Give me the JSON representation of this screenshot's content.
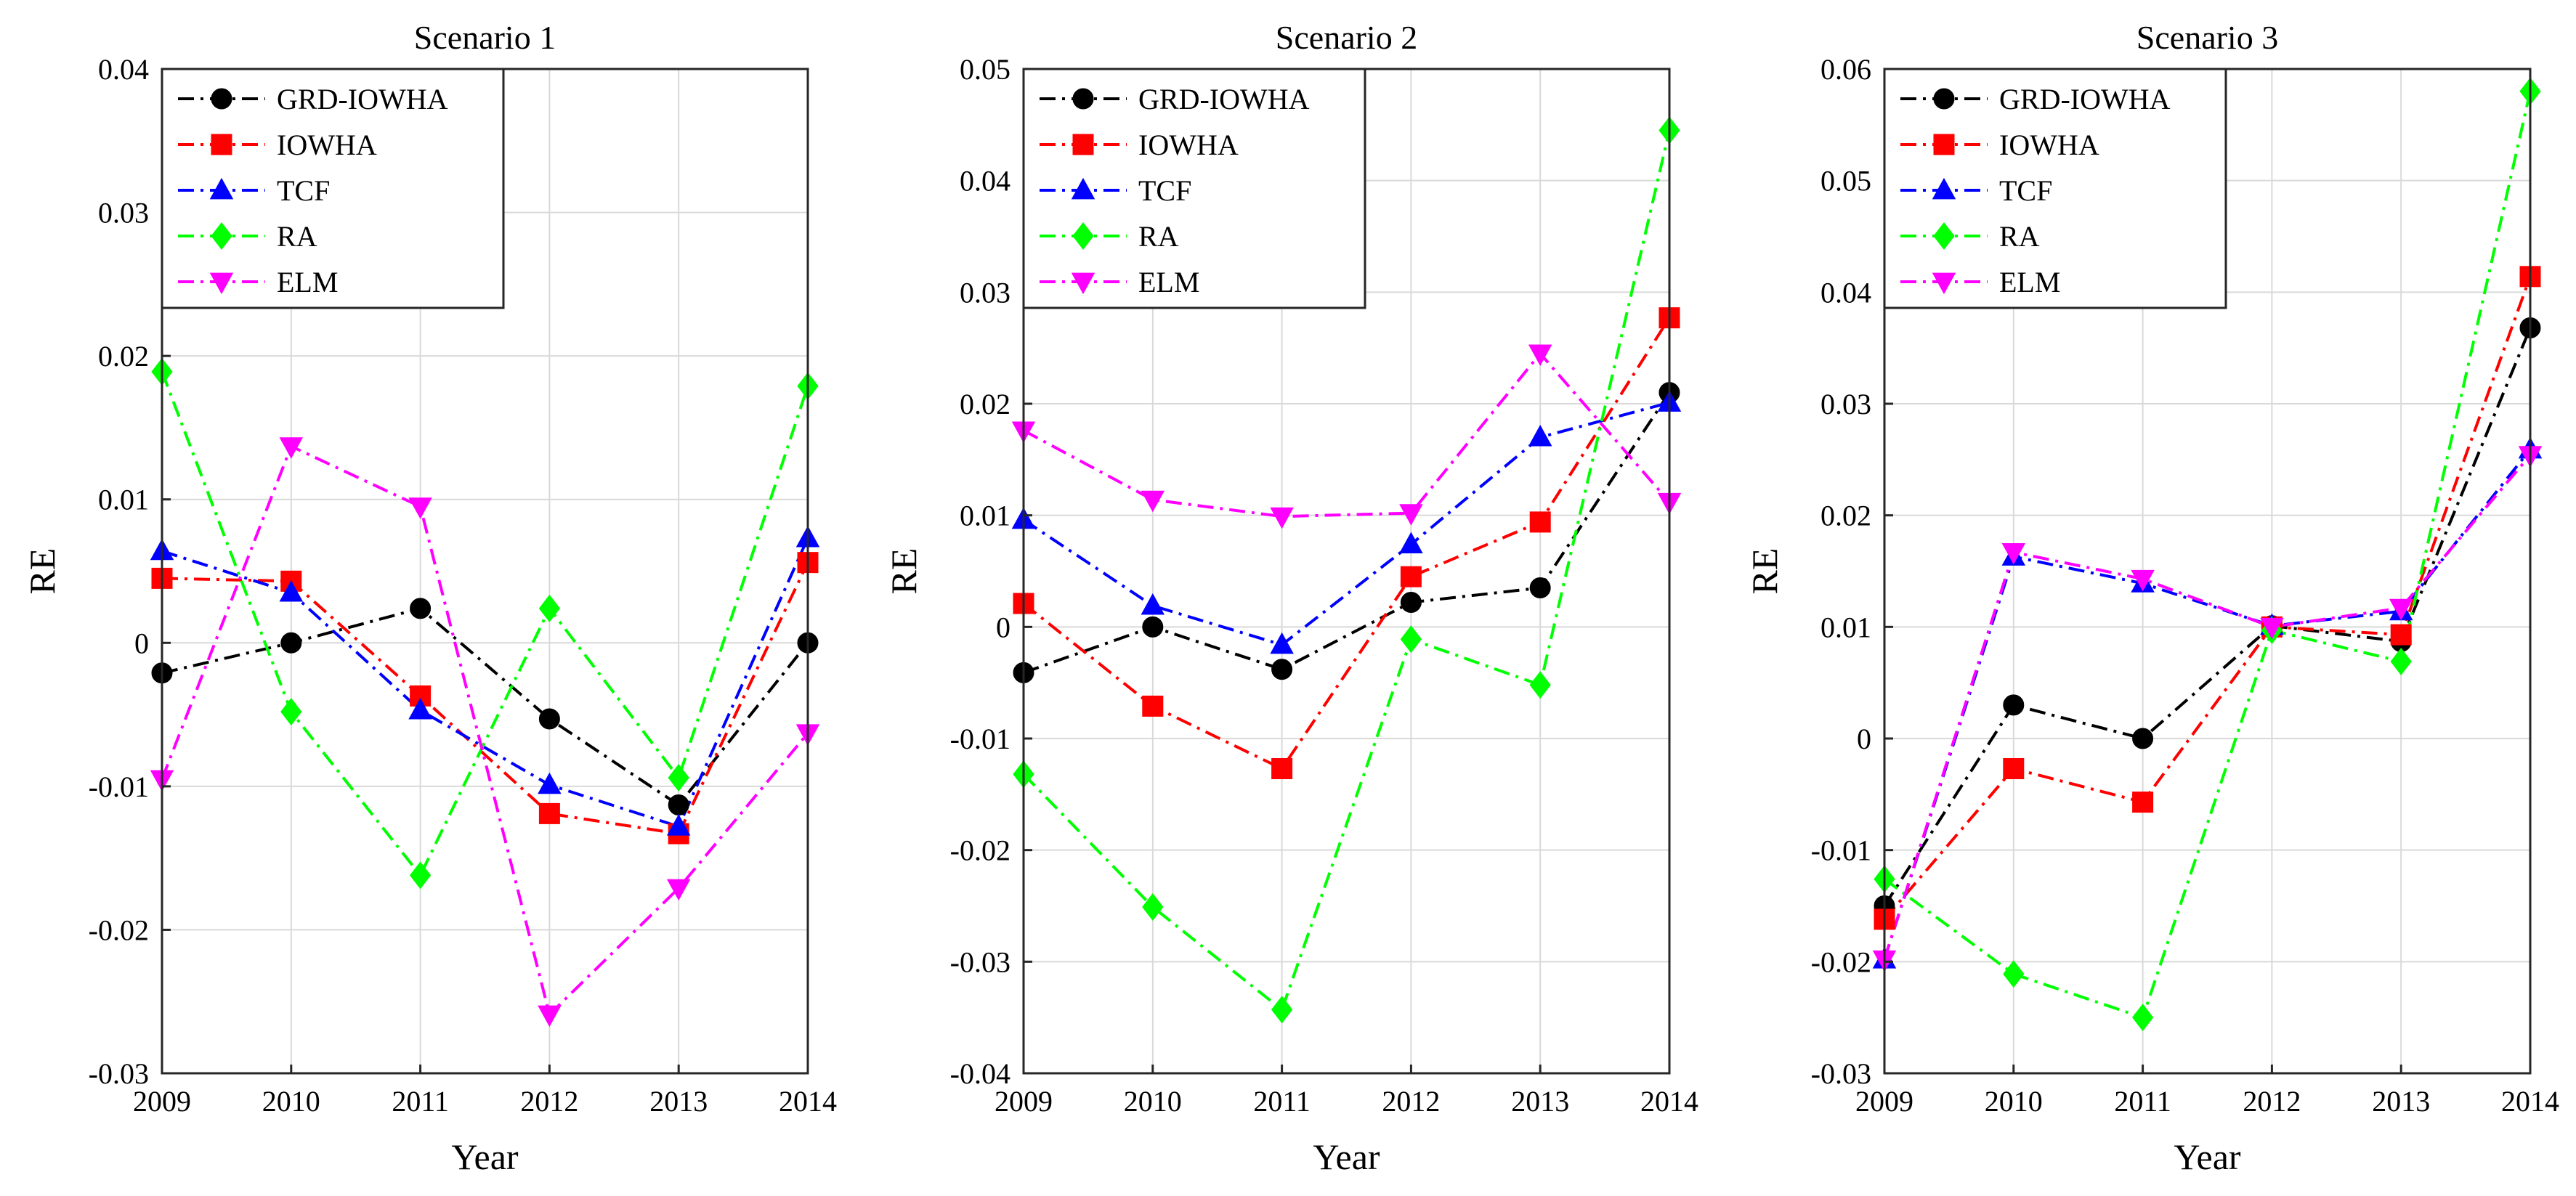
{
  "figure": {
    "ylabel_all": "RE",
    "xlabel_all": "Year"
  },
  "chart_data": [
    {
      "type": "line",
      "title": "Scenario 1",
      "xlabel": "Year",
      "ylabel": "RE",
      "x": [
        2009,
        2010,
        2011,
        2012,
        2013,
        2014
      ],
      "ylim": [
        -0.03,
        0.04
      ],
      "yticks": [
        -0.03,
        -0.02,
        -0.01,
        0,
        0.01,
        0.02,
        0.03,
        0.04
      ],
      "ytick_labels": [
        "-0.03",
        "-0.02",
        "-0.01",
        "0",
        "0.01",
        "0.02",
        "0.03",
        "0.04"
      ],
      "xtick_labels": [
        "2009",
        "2010",
        "2011",
        "2012",
        "2013",
        "2014"
      ],
      "grid": true,
      "legend_position": "top-left",
      "series": [
        {
          "name": "GRD-IOWHA",
          "color": "#000000",
          "marker": "circle",
          "values": [
            -0.0021,
            0.0,
            0.0024,
            -0.0053,
            -0.0113,
            0.0
          ]
        },
        {
          "name": "IOWHA",
          "color": "#ff0000",
          "marker": "square",
          "values": [
            0.0045,
            0.0043,
            -0.0037,
            -0.0119,
            -0.0133,
            0.0056
          ]
        },
        {
          "name": "TCF",
          "color": "#0000ff",
          "marker": "triangle-up",
          "values": [
            0.0064,
            0.0035,
            -0.0047,
            -0.0099,
            -0.0128,
            0.0073
          ]
        },
        {
          "name": "RA",
          "color": "#00ff00",
          "marker": "diamond",
          "values": [
            0.0189,
            -0.0048,
            -0.0162,
            0.0024,
            -0.0094,
            0.0179
          ]
        },
        {
          "name": "ELM",
          "color": "#ff00ff",
          "marker": "triangle-down",
          "values": [
            -0.0095,
            0.0137,
            0.0095,
            -0.0259,
            -0.0171,
            -0.0063
          ]
        }
      ]
    },
    {
      "type": "line",
      "title": "Scenario 2",
      "xlabel": "Year",
      "ylabel": "RE",
      "x": [
        2009,
        2010,
        2011,
        2012,
        2013,
        2014
      ],
      "ylim": [
        -0.04,
        0.05
      ],
      "yticks": [
        -0.04,
        -0.03,
        -0.02,
        -0.01,
        0,
        0.01,
        0.02,
        0.03,
        0.04,
        0.05
      ],
      "ytick_labels": [
        "-0.04",
        "-0.03",
        "-0.02",
        "-0.01",
        "0",
        "0.01",
        "0.02",
        "0.03",
        "0.04",
        "0.05"
      ],
      "xtick_labels": [
        "2009",
        "2010",
        "2011",
        "2012",
        "2013",
        "2014"
      ],
      "grid": true,
      "legend_position": "top-left",
      "series": [
        {
          "name": "GRD-IOWHA",
          "color": "#000000",
          "marker": "circle",
          "values": [
            -0.0041,
            0.0,
            -0.0038,
            0.0022,
            0.0035,
            0.021
          ]
        },
        {
          "name": "IOWHA",
          "color": "#ff0000",
          "marker": "square",
          "values": [
            0.0021,
            -0.0071,
            -0.0127,
            0.0045,
            0.0094,
            0.0277
          ]
        },
        {
          "name": "TCF",
          "color": "#0000ff",
          "marker": "triangle-up",
          "values": [
            0.0096,
            0.0019,
            -0.0016,
            0.0074,
            0.017,
            0.0201
          ]
        },
        {
          "name": "RA",
          "color": "#00ff00",
          "marker": "diamond",
          "values": [
            -0.0132,
            -0.0251,
            -0.0343,
            -0.0011,
            -0.0052,
            0.0445
          ]
        },
        {
          "name": "ELM",
          "color": "#ff00ff",
          "marker": "triangle-down",
          "values": [
            0.0176,
            0.0114,
            0.0099,
            0.0102,
            0.0245,
            0.0112
          ]
        }
      ]
    },
    {
      "type": "line",
      "title": "Scenario 3",
      "xlabel": "Year",
      "ylabel": "RE",
      "x": [
        2009,
        2010,
        2011,
        2012,
        2013,
        2014
      ],
      "ylim": [
        -0.03,
        0.06
      ],
      "yticks": [
        -0.03,
        -0.02,
        -0.01,
        0,
        0.01,
        0.02,
        0.03,
        0.04,
        0.05,
        0.06
      ],
      "ytick_labels": [
        "-0.03",
        "-0.02",
        "-0.01",
        "0",
        "0.01",
        "0.02",
        "0.03",
        "0.04",
        "0.05",
        "0.06"
      ],
      "xtick_labels": [
        "2009",
        "2010",
        "2011",
        "2012",
        "2013",
        "2014"
      ],
      "grid": true,
      "legend_position": "top-left",
      "series": [
        {
          "name": "GRD-IOWHA",
          "color": "#000000",
          "marker": "circle",
          "values": [
            -0.015,
            0.003,
            0.0,
            0.0101,
            0.0087,
            0.0368
          ]
        },
        {
          "name": "IOWHA",
          "color": "#ff0000",
          "marker": "square",
          "values": [
            -0.0162,
            -0.0027,
            -0.0057,
            0.01,
            0.0093,
            0.0414
          ]
        },
        {
          "name": "TCF",
          "color": "#0000ff",
          "marker": "triangle-up",
          "values": [
            -0.0198,
            0.0163,
            0.0139,
            0.0101,
            0.0114,
            0.0259
          ]
        },
        {
          "name": "RA",
          "color": "#00ff00",
          "marker": "diamond",
          "values": [
            -0.0126,
            -0.0211,
            -0.025,
            0.0097,
            0.0069,
            0.058
          ]
        },
        {
          "name": "ELM",
          "color": "#ff00ff",
          "marker": "triangle-down",
          "values": [
            -0.0198,
            0.0167,
            0.0143,
            0.01,
            0.0117,
            0.0254
          ]
        }
      ]
    }
  ]
}
